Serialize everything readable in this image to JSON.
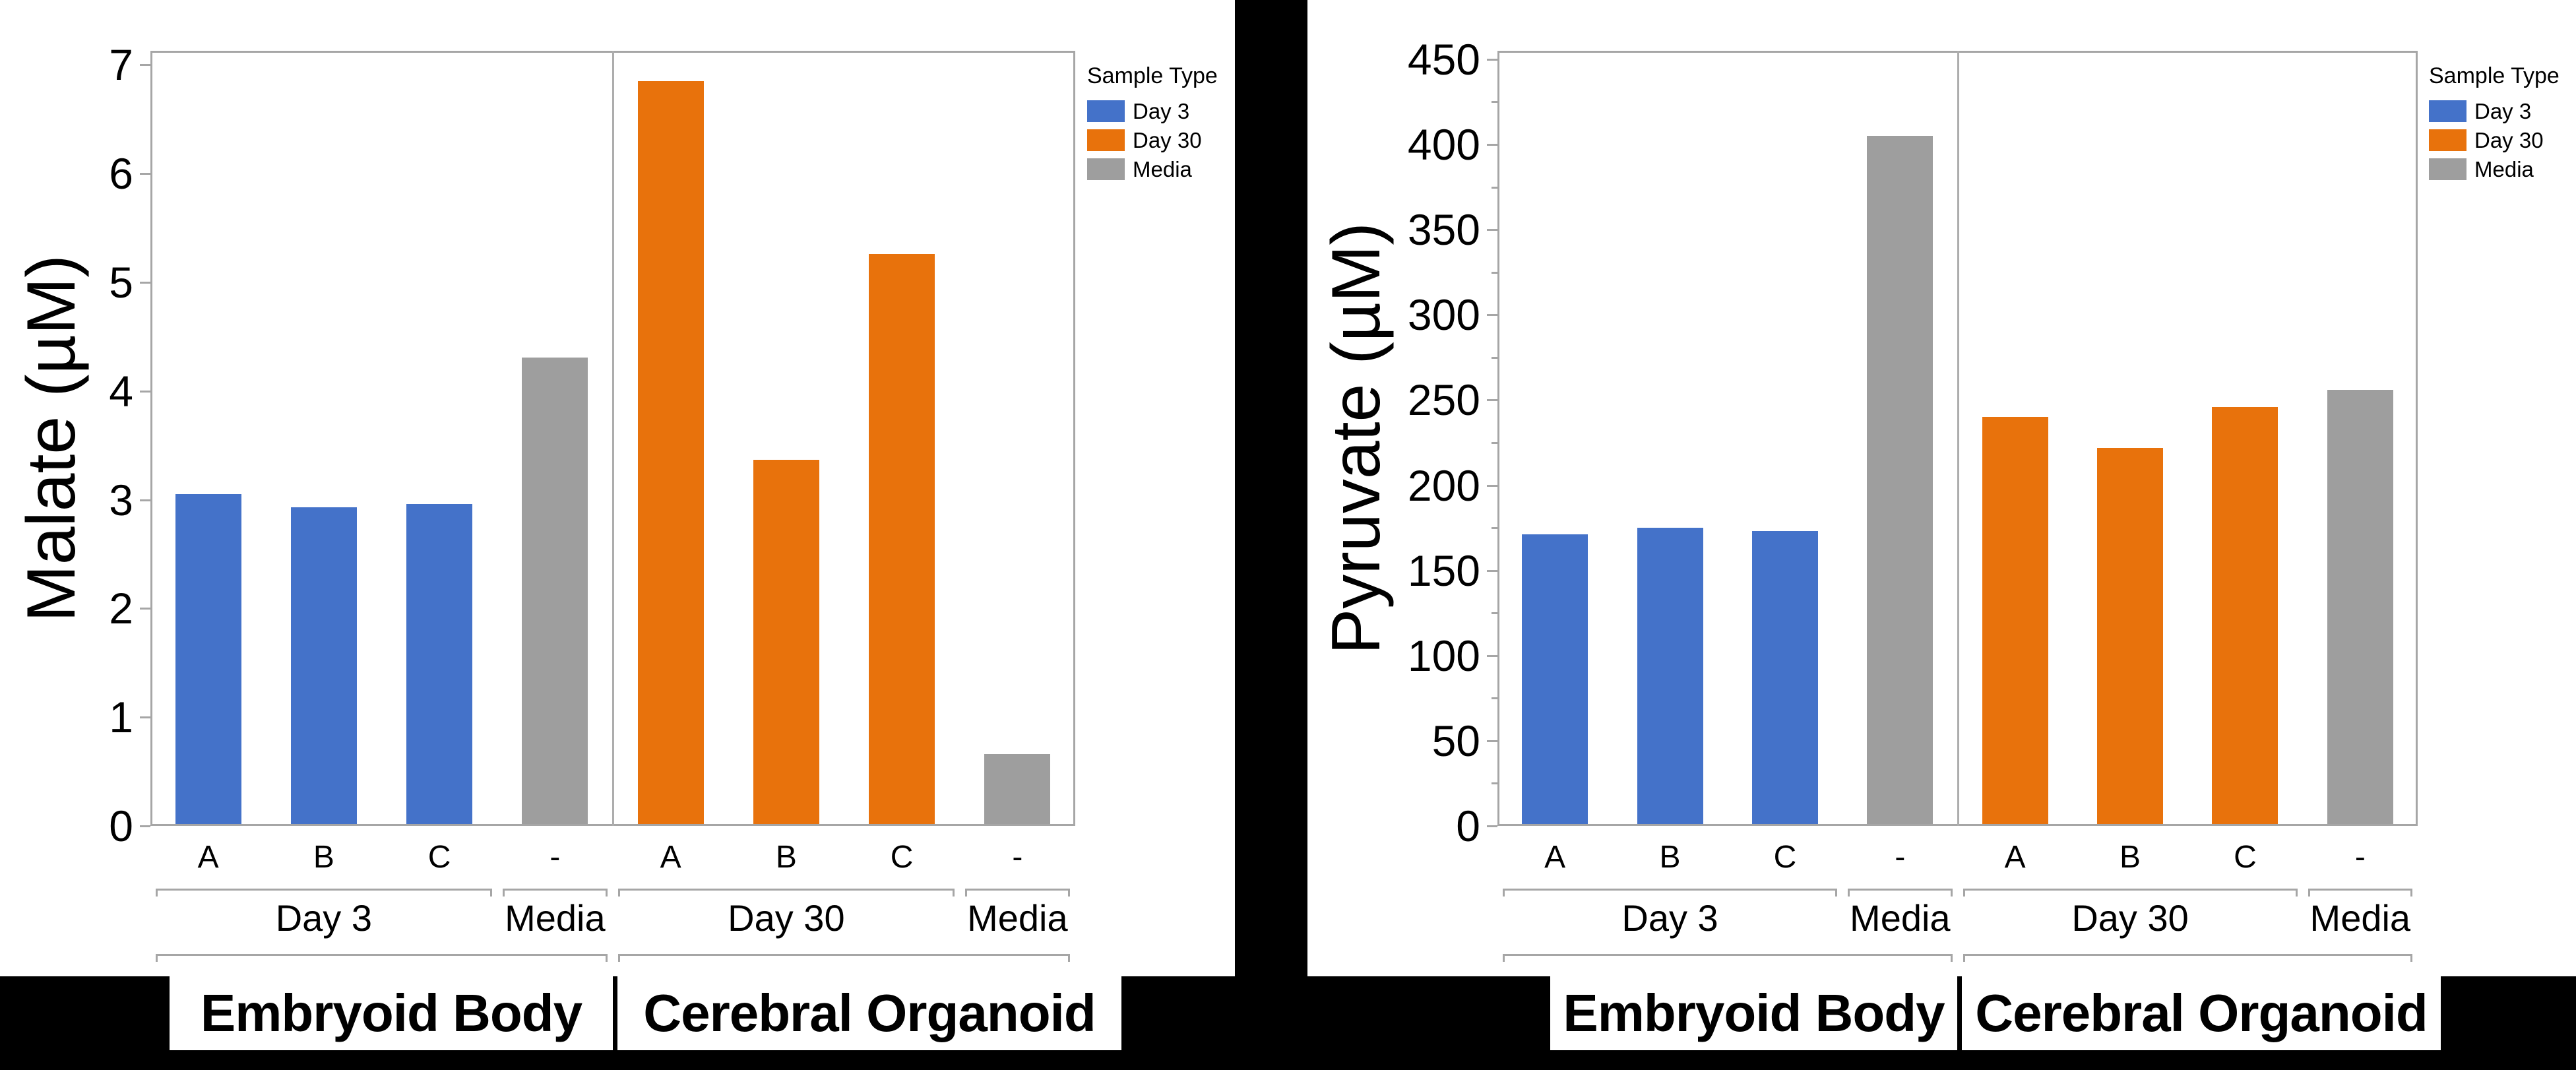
{
  "chart_data": [
    {
      "type": "bar",
      "ylabel": "Malate (µM)",
      "ylim": [
        0,
        7
      ],
      "axis_max": 7.13,
      "yticks": [
        0,
        1,
        2,
        3,
        4,
        5,
        6,
        7
      ],
      "minor_tick_step": null,
      "grid": false,
      "categories": [
        "A",
        "B",
        "C",
        "-",
        "A",
        "B",
        "C",
        "-"
      ],
      "series_of_bar": [
        "Day 3",
        "Day 3",
        "Day 3",
        "Media",
        "Day 30",
        "Day 30",
        "Day 30",
        "Media"
      ],
      "values": [
        3.05,
        2.93,
        2.96,
        4.31,
        6.85,
        3.37,
        5.26,
        0.66
      ],
      "groups": [
        {
          "label": "Day 3",
          "from": 0,
          "to": 2
        },
        {
          "label": "Media",
          "from": 3,
          "to": 3
        },
        {
          "label": "Day 30",
          "from": 4,
          "to": 6
        },
        {
          "label": "Media",
          "from": 7,
          "to": 7
        }
      ],
      "panels": [
        {
          "label": "Embryoid Body",
          "from": 0,
          "to": 3
        },
        {
          "label": "Cerebral Organoid",
          "from": 4,
          "to": 7
        }
      ],
      "legend": {
        "title": "Sample Type",
        "position": "right",
        "entries": [
          {
            "label": "Day 3",
            "color": "#4472c9"
          },
          {
            "label": "Day 30",
            "color": "#e8720c"
          },
          {
            "label": "Media",
            "color": "#9e9e9e"
          }
        ]
      }
    },
    {
      "type": "bar",
      "ylabel": "Pyruvate (µM)",
      "ylim": [
        0,
        450
      ],
      "axis_max": 455,
      "yticks": [
        0,
        50,
        100,
        150,
        200,
        250,
        300,
        350,
        400,
        450
      ],
      "minor_tick_step": 25,
      "grid": false,
      "categories": [
        "A",
        "B",
        "C",
        "-",
        "A",
        "B",
        "C",
        "-"
      ],
      "series_of_bar": [
        "Day 3",
        "Day 3",
        "Day 3",
        "Media",
        "Day 30",
        "Day 30",
        "Day 30",
        "Media"
      ],
      "values": [
        171,
        175,
        173,
        405,
        240,
        222,
        246,
        256
      ],
      "groups": [
        {
          "label": "Day 3",
          "from": 0,
          "to": 2
        },
        {
          "label": "Media",
          "from": 3,
          "to": 3
        },
        {
          "label": "Day 30",
          "from": 4,
          "to": 6
        },
        {
          "label": "Media",
          "from": 7,
          "to": 7
        }
      ],
      "panels": [
        {
          "label": "Embryoid Body",
          "from": 0,
          "to": 3
        },
        {
          "label": "Cerebral Organoid",
          "from": 4,
          "to": 7
        }
      ],
      "legend": {
        "title": "Sample Type",
        "position": "right",
        "entries": [
          {
            "label": "Day 3",
            "color": "#4472c9"
          },
          {
            "label": "Day 30",
            "color": "#e8720c"
          },
          {
            "label": "Media",
            "color": "#9e9e9e"
          }
        ]
      }
    }
  ],
  "colors": {
    "background": "#000000",
    "panel_background": "#ffffff",
    "axis_line": "#a6a6a6",
    "text": "#000000"
  }
}
